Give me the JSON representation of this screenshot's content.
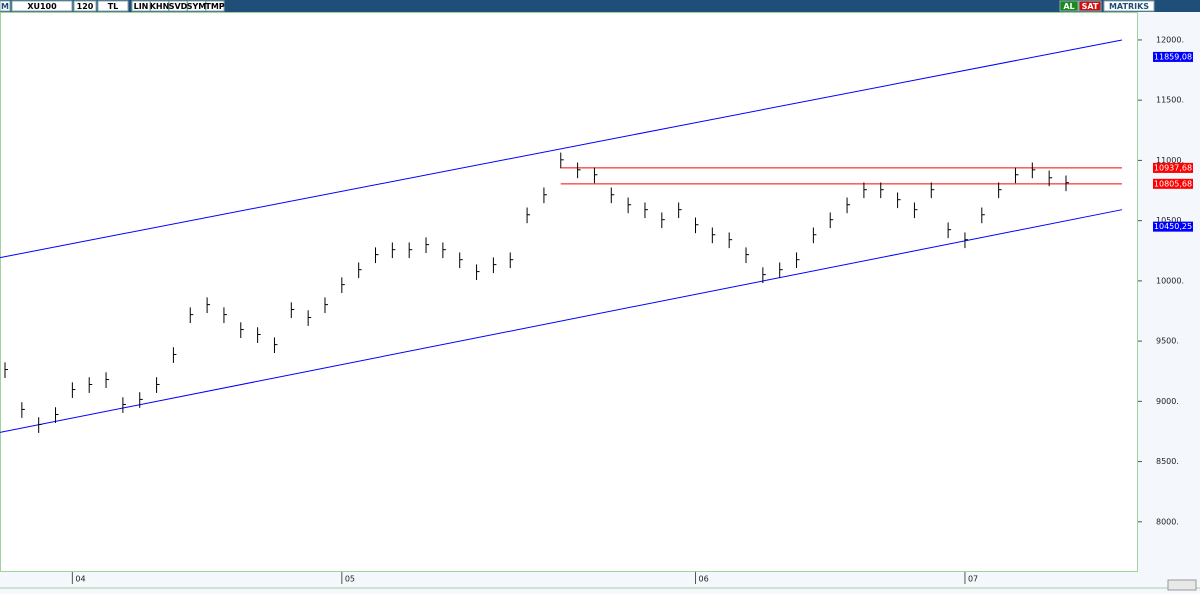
{
  "toolbar": {
    "logo": "M",
    "symbol": "XU100",
    "period": "120",
    "currency": "TL",
    "buttons": [
      "LIN",
      "KHN",
      "SVD",
      "SYM",
      "TMP"
    ],
    "buy": "AL",
    "sell": "SAT",
    "brand": "MATRIKS"
  },
  "chart_data": {
    "type": "ohlc",
    "color": "#000000",
    "categories": [
      null,
      null,
      null,
      null,
      "04",
      null,
      null,
      null,
      null,
      null,
      null,
      null,
      null,
      null,
      null,
      null,
      null,
      null,
      null,
      null,
      "05",
      null,
      null,
      null,
      null,
      null,
      null,
      null,
      null,
      null,
      null,
      null,
      null,
      null,
      null,
      null,
      null,
      null,
      null,
      null,
      null,
      "06",
      null,
      null,
      null,
      null,
      null,
      null,
      null,
      null,
      null,
      null,
      null,
      null,
      null,
      null,
      null,
      "07",
      null,
      null,
      null,
      null,
      null,
      null
    ],
    "high": [
      9324,
      8993,
      8868,
      8951,
      9158,
      9200,
      9241,
      9034,
      9076,
      9200,
      9449,
      9780,
      9863,
      9780,
      9656,
      9615,
      9531,
      9822,
      9756,
      9863,
      10029,
      10153,
      10278,
      10319,
      10319,
      10361,
      10319,
      10236,
      10137,
      10195,
      10236,
      10609,
      10775,
      11065,
      10982,
      10941,
      10775,
      10692,
      10651,
      10568,
      10651,
      10526,
      10443,
      10402,
      10278,
      10112,
      10153,
      10236,
      10443,
      10568,
      10692,
      10817,
      10817,
      10734,
      10651,
      10817,
      10485,
      10402,
      10609,
      10817,
      10941,
      10982,
      10916,
      10875
    ],
    "low": [
      9194,
      8863,
      8738,
      8821,
      9028,
      9070,
      9111,
      8904,
      8946,
      9070,
      9319,
      9650,
      9733,
      9650,
      9526,
      9485,
      9401,
      9692,
      9626,
      9733,
      9899,
      10023,
      10148,
      10189,
      10189,
      10231,
      10189,
      10106,
      10007,
      10065,
      10106,
      10479,
      10645,
      10935,
      10852,
      10811,
      10645,
      10562,
      10521,
      10438,
      10521,
      10396,
      10313,
      10272,
      10148,
      9982,
      10023,
      10106,
      10313,
      10438,
      10562,
      10687,
      10687,
      10604,
      10521,
      10687,
      10355,
      10272,
      10479,
      10687,
      10811,
      10852,
      10786,
      10745
    ],
    "close": [
      9264,
      8933,
      8808,
      8891,
      9098,
      9140,
      9181,
      8974,
      9016,
      9140,
      9389,
      9720,
      9803,
      9720,
      9596,
      9555,
      9471,
      9762,
      9696,
      9803,
      9969,
      10093,
      10218,
      10259,
      10259,
      10301,
      10259,
      10176,
      10077,
      10135,
      10176,
      10549,
      10715,
      11005,
      10922,
      10881,
      10715,
      10632,
      10591,
      10508,
      10591,
      10466,
      10383,
      10342,
      10218,
      10052,
      10093,
      10176,
      10383,
      10508,
      10632,
      10757,
      10757,
      10674,
      10591,
      10757,
      10425,
      10342,
      10549,
      10757,
      10881,
      10922,
      10856,
      10815
    ],
    "ylim": [
      7600,
      12232
    ],
    "yticks": [
      {
        "value": 8000,
        "label": "8000."
      },
      {
        "value": 8500,
        "label": "8500."
      },
      {
        "value": 9000,
        "label": "9000."
      },
      {
        "value": 9500,
        "label": "9500."
      },
      {
        "value": 10000,
        "label": "10000."
      },
      {
        "value": 10500,
        "label": "10500."
      },
      {
        "value": 11000,
        "label": "11000."
      },
      {
        "value": 11500,
        "label": "11500."
      },
      {
        "value": 12000,
        "label": "12000."
      }
    ],
    "trend_lines": [
      {
        "color": "#0000ff",
        "start": 10193,
        "end": 12000,
        "marker": {
          "value": 11859.08,
          "label": "11859,08"
        }
      },
      {
        "color": "#0000ff",
        "start": 8742,
        "end": 10591,
        "marker": {
          "value": 10450.25,
          "label": "10450,25"
        }
      }
    ],
    "levels": [
      {
        "color": "#ff0000",
        "from": 33,
        "value": 10937.68,
        "label": "10937,68"
      },
      {
        "color": "#ff0000",
        "from": 33,
        "value": 10805.68,
        "label": "10805,68"
      }
    ]
  }
}
